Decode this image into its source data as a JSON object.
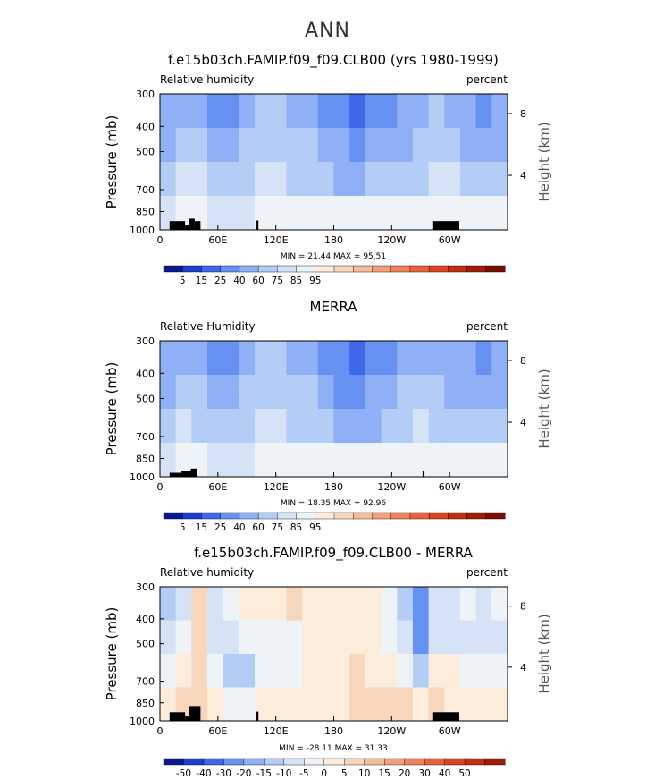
{
  "page_title": "ANN",
  "chart_data": [
    {
      "type": "heatmap",
      "title": "f.e15b03ch.FAMIP.f09_f09.CLB00 (yrs 1980-1999)",
      "left_label": "Relative humidity",
      "right_label": "percent",
      "ylabel": "Pressure (mb)",
      "y2label": "Height (km)",
      "xticks": [
        "0",
        "60E",
        "120E",
        "180",
        "120W",
        "60W"
      ],
      "xtick_values": [
        0,
        60,
        120,
        180,
        240,
        300
      ],
      "xlim": [
        0,
        360
      ],
      "yticks": [
        "300",
        "400",
        "500",
        "700",
        "850",
        "1000"
      ],
      "ytick_values": [
        300,
        400,
        500,
        700,
        850,
        1000
      ],
      "ylim": [
        1000,
        300
      ],
      "y2ticks": [
        "8",
        "4"
      ],
      "y2tick_pressures": [
        357,
        617
      ],
      "stats": "MIN =   21.44   MAX =   95.51",
      "colorbar_labels": [
        "5",
        "15",
        "25",
        "40",
        "60",
        "75",
        "85",
        "95"
      ],
      "colorbar_colors": [
        "#0a1a8c",
        "#1d3fd0",
        "#3f67ea",
        "#6690f2",
        "#8fb0f6",
        "#b4cdf7",
        "#d6e3f6",
        "#eef3f8",
        "#fbecdc",
        "#f8d6bc",
        "#f6bd9b",
        "#f3a07a",
        "#ee8259",
        "#e86239",
        "#da4420",
        "#c12e10",
        "#9e1c08",
        "#7a0e04"
      ],
      "field": [
        [
          44,
          60,
          58,
          40,
          32,
          55,
          66,
          68,
          60,
          55,
          40,
          30,
          24,
          30,
          40,
          50,
          56,
          62,
          58,
          42,
          32,
          42
        ],
        [
          52,
          66,
          62,
          50,
          44,
          62,
          74,
          75,
          66,
          62,
          52,
          42,
          38,
          44,
          52,
          60,
          66,
          74,
          70,
          55,
          46,
          52
        ],
        [
          68,
          82,
          78,
          70,
          68,
          70,
          82,
          80,
          74,
          72,
          66,
          60,
          58,
          62,
          66,
          70,
          75,
          82,
          80,
          72,
          68,
          72
        ],
        [
          84,
          90,
          88,
          84,
          82,
          84,
          88,
          88,
          86,
          86,
          86,
          86,
          87,
          88,
          88,
          88,
          88,
          90,
          90,
          88,
          88,
          88
        ]
      ]
    },
    {
      "type": "heatmap",
      "title": "MERRA",
      "left_label": "Relative Humidity",
      "right_label": "percent",
      "ylabel": "Pressure (mb)",
      "y2label": "Height (km)",
      "xticks": [
        "0",
        "60E",
        "120E",
        "180",
        "120W",
        "60W"
      ],
      "xtick_values": [
        0,
        60,
        120,
        180,
        240,
        300
      ],
      "xlim": [
        0,
        360
      ],
      "yticks": [
        "300",
        "400",
        "500",
        "700",
        "850",
        "1000"
      ],
      "ytick_values": [
        300,
        400,
        500,
        700,
        850,
        1000
      ],
      "ylim": [
        1000,
        300
      ],
      "y2ticks": [
        "8",
        "4"
      ],
      "y2tick_pressures": [
        357,
        617
      ],
      "stats": "MIN =   18.35   MAX =   92.96",
      "colorbar_labels": [
        "5",
        "15",
        "25",
        "40",
        "60",
        "75",
        "85",
        "95"
      ],
      "colorbar_colors": [
        "#0a1a8c",
        "#1d3fd0",
        "#3f67ea",
        "#6690f2",
        "#8fb0f6",
        "#b4cdf7",
        "#d6e3f6",
        "#eef3f8",
        "#fbecdc",
        "#f8d6bc",
        "#f6bd9b",
        "#f3a07a",
        "#ee8259",
        "#e86239",
        "#da4420",
        "#c12e10",
        "#9e1c08",
        "#7a0e04"
      ],
      "field": [
        [
          42,
          58,
          56,
          34,
          38,
          52,
          62,
          62,
          56,
          52,
          38,
          26,
          22,
          28,
          40,
          55,
          60,
          56,
          52,
          42,
          36,
          44
        ],
        [
          52,
          66,
          62,
          46,
          50,
          62,
          72,
          72,
          66,
          62,
          50,
          38,
          34,
          42,
          52,
          66,
          70,
          64,
          60,
          52,
          48,
          54
        ],
        [
          66,
          78,
          74,
          62,
          64,
          72,
          78,
          78,
          74,
          70,
          64,
          58,
          56,
          60,
          64,
          72,
          76,
          72,
          70,
          66,
          64,
          68
        ],
        [
          82,
          88,
          86,
          82,
          82,
          84,
          86,
          86,
          86,
          86,
          86,
          86,
          86,
          86,
          86,
          86,
          86,
          88,
          88,
          86,
          86,
          86
        ]
      ]
    },
    {
      "type": "heatmap",
      "title": "f.e15b03ch.FAMIP.f09_f09.CLB00 - MERRA",
      "left_label": "Relative humidity",
      "right_label": "percent",
      "ylabel": "Pressure (mb)",
      "y2label": "Height (km)",
      "xticks": [
        "0",
        "60E",
        "120E",
        "180",
        "120W",
        "60W"
      ],
      "xtick_values": [
        0,
        60,
        120,
        180,
        240,
        300
      ],
      "xlim": [
        0,
        360
      ],
      "yticks": [
        "300",
        "400",
        "500",
        "700",
        "850",
        "1000"
      ],
      "ytick_values": [
        300,
        400,
        500,
        700,
        850,
        1000
      ],
      "ylim": [
        1000,
        300
      ],
      "y2ticks": [
        "8",
        "4"
      ],
      "y2tick_pressures": [
        357,
        617
      ],
      "stats": "MIN = -28.11   MAX =   31.33",
      "colorbar_labels": [
        "-50",
        "-40",
        "-30",
        "-20",
        "-15",
        "-10",
        "-5",
        "0",
        "5",
        "10",
        "15",
        "20",
        "30",
        "40",
        "50"
      ],
      "colorbar_colors": [
        "#0a1a8c",
        "#1d3fd0",
        "#3f67ea",
        "#6690f2",
        "#8fb0f6",
        "#b4cdf7",
        "#d6e3f6",
        "#eef3f8",
        "#fbecdc",
        "#f8d6bc",
        "#f6bd9b",
        "#f3a07a",
        "#ee8259",
        "#e86239",
        "#da4420",
        "#c12e10",
        "#9e1c08"
      ],
      "field": [
        [
          -12,
          -6,
          6,
          -8,
          -4,
          4,
          2,
          4,
          6,
          4,
          2,
          2,
          4,
          4,
          0,
          -10,
          -22,
          -6,
          -6,
          -4,
          -6,
          -4
        ],
        [
          -8,
          -4,
          8,
          -6,
          -8,
          -2,
          -4,
          -2,
          0,
          2,
          2,
          4,
          4,
          2,
          0,
          -6,
          -20,
          -6,
          -8,
          -6,
          -8,
          -6
        ],
        [
          -2,
          4,
          10,
          -4,
          -12,
          -10,
          -2,
          0,
          -2,
          2,
          2,
          4,
          6,
          4,
          2,
          -4,
          -10,
          4,
          2,
          -2,
          -4,
          -2
        ],
        [
          2,
          6,
          8,
          2,
          -2,
          0,
          2,
          2,
          2,
          2,
          2,
          4,
          8,
          10,
          10,
          8,
          4,
          6,
          4,
          2,
          2,
          2
        ]
      ]
    }
  ]
}
